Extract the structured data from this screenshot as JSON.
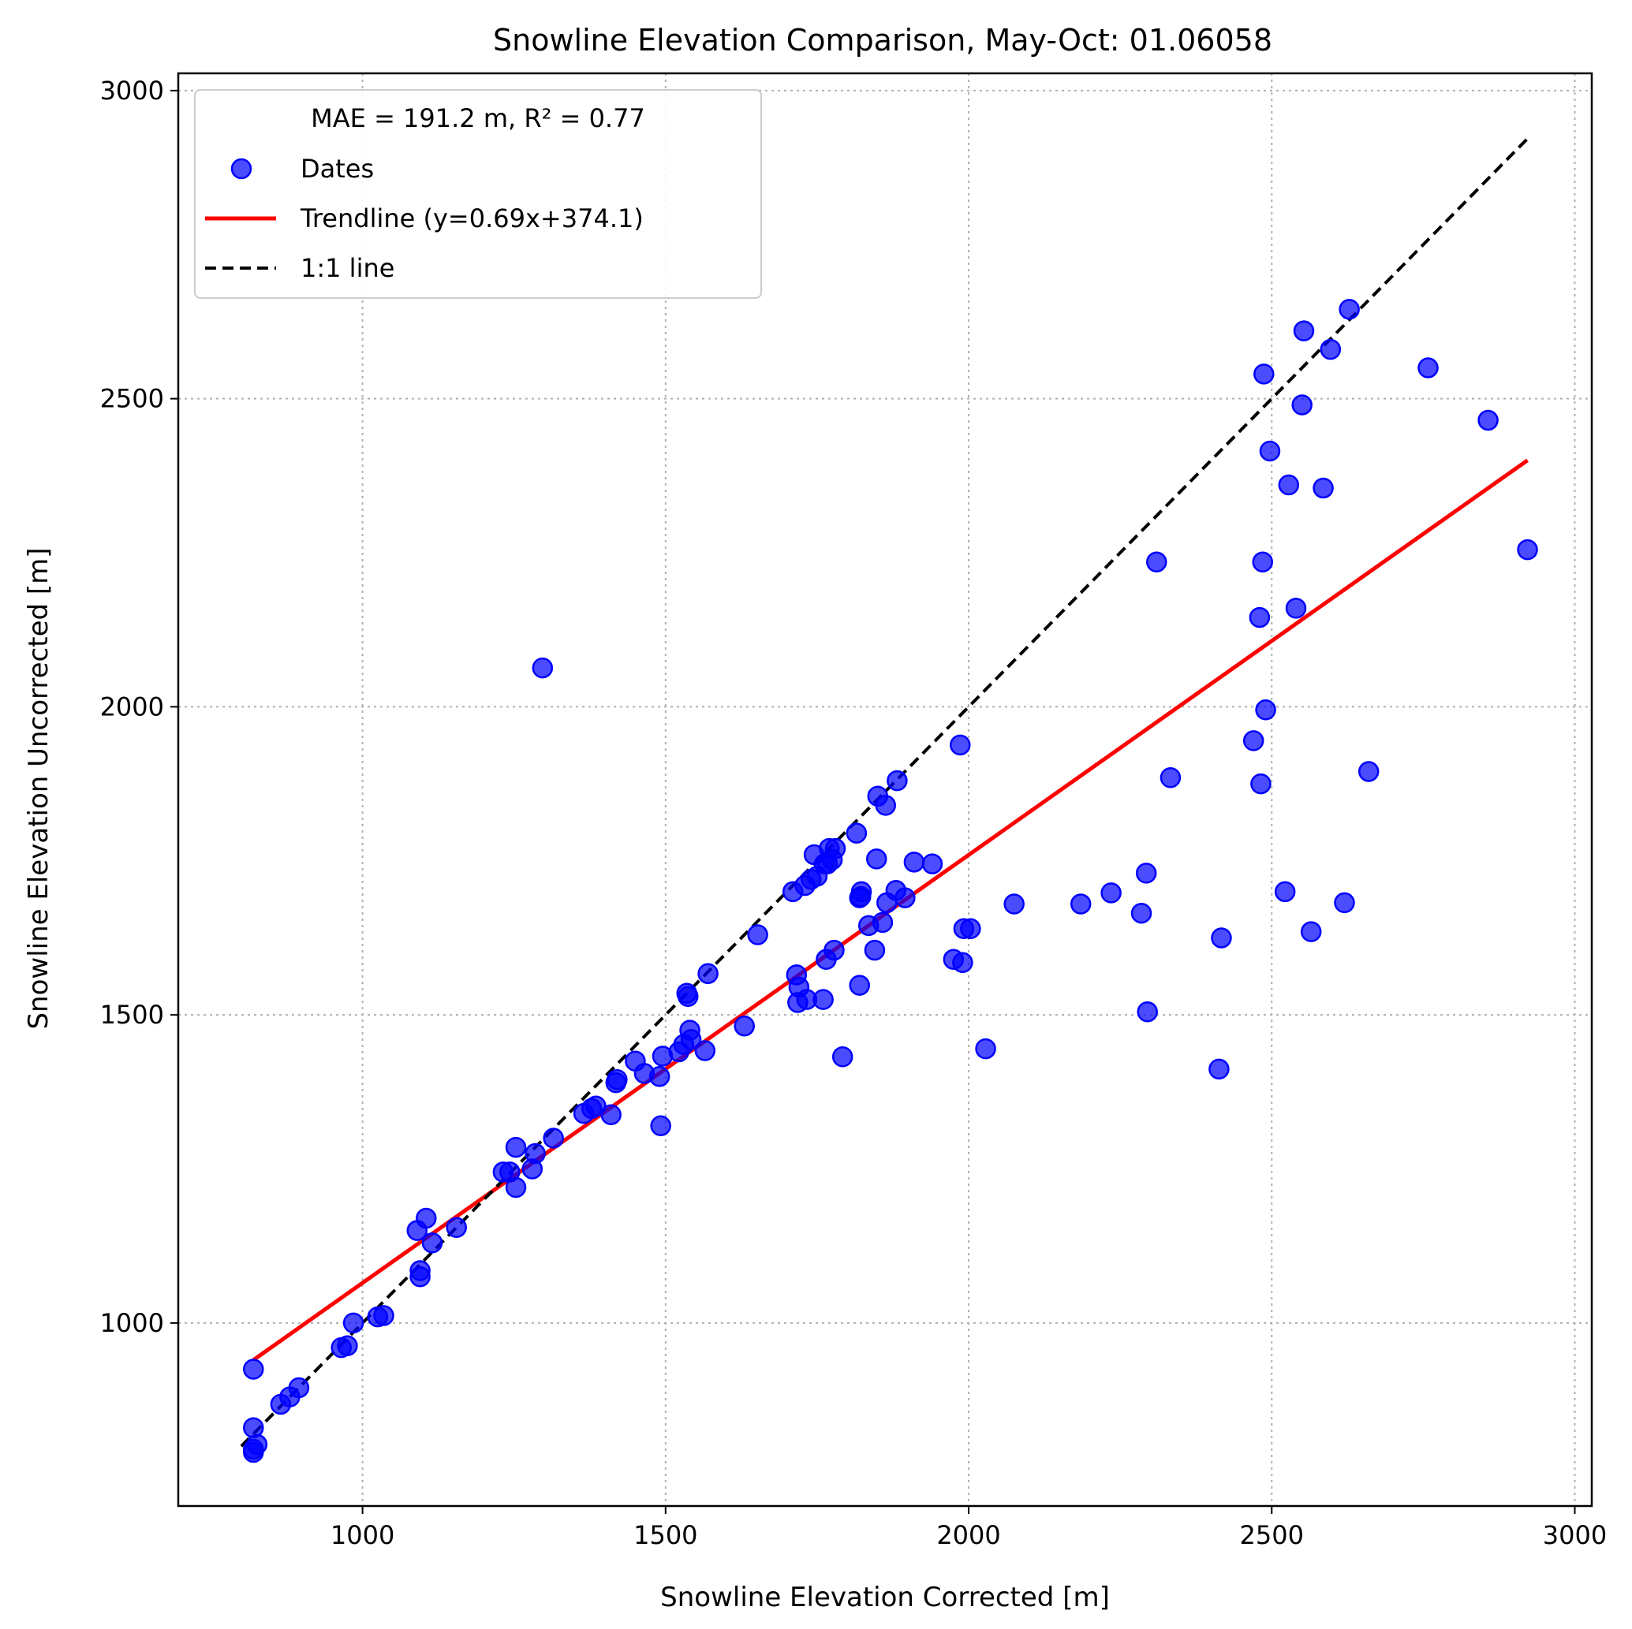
{
  "chart_data": {
    "type": "scatter",
    "title": "Snowline Elevation Comparison, May-Oct: 01.06058",
    "xlabel": "Snowline Elevation Corrected [m]",
    "ylabel": "Snowline Elevation Uncorrected [m]",
    "xlim": [
      696,
      3028
    ],
    "ylim": [
      703,
      3028
    ],
    "xticks": [
      1000,
      1500,
      2000,
      2500,
      3000
    ],
    "yticks": [
      1000,
      1500,
      2000,
      2500,
      3000
    ],
    "grid": true,
    "legend_position": "top-left",
    "legend_title": "MAE = 191.2 m,  R² = 0.77",
    "colors": {
      "points": "#0000ff",
      "trendline": "#ff0000",
      "one_to_one": "#000000"
    },
    "series": [
      {
        "name": "Dates",
        "kind": "scatter",
        "points": [
          [
            820,
            790
          ],
          [
            820,
            795
          ],
          [
            826,
            803
          ],
          [
            820,
            830
          ],
          [
            820,
            925
          ],
          [
            865,
            868
          ],
          [
            880,
            880
          ],
          [
            895,
            895
          ],
          [
            965,
            960
          ],
          [
            975,
            963
          ],
          [
            985,
            1000
          ],
          [
            1025,
            1010
          ],
          [
            1035,
            1012
          ],
          [
            1090,
            1150
          ],
          [
            1095,
            1075
          ],
          [
            1095,
            1085
          ],
          [
            1105,
            1170
          ],
          [
            1115,
            1130
          ],
          [
            1155,
            1155
          ],
          [
            1232,
            1245
          ],
          [
            1243,
            1245
          ],
          [
            1253,
            1220
          ],
          [
            1253,
            1285
          ],
          [
            1280,
            1250
          ],
          [
            1285,
            1275
          ],
          [
            1297,
            2063
          ],
          [
            1315,
            1300
          ],
          [
            1365,
            1340
          ],
          [
            1378,
            1348
          ],
          [
            1385,
            1352
          ],
          [
            1410,
            1338
          ],
          [
            1418,
            1390
          ],
          [
            1420,
            1395
          ],
          [
            1450,
            1425
          ],
          [
            1465,
            1405
          ],
          [
            1490,
            1400
          ],
          [
            1492,
            1320
          ],
          [
            1495,
            1433
          ],
          [
            1522,
            1440
          ],
          [
            1530,
            1452
          ],
          [
            1535,
            1535
          ],
          [
            1537,
            1530
          ],
          [
            1540,
            1475
          ],
          [
            1542,
            1460
          ],
          [
            1565,
            1442
          ],
          [
            1570,
            1567
          ],
          [
            1630,
            1482
          ],
          [
            1652,
            1630
          ],
          [
            1710,
            1700
          ],
          [
            1716,
            1565
          ],
          [
            1718,
            1520
          ],
          [
            1720,
            1545
          ],
          [
            1730,
            1710
          ],
          [
            1733,
            1525
          ],
          [
            1740,
            1720
          ],
          [
            1745,
            1760
          ],
          [
            1750,
            1725
          ],
          [
            1760,
            1525
          ],
          [
            1762,
            1745
          ],
          [
            1765,
            1590
          ],
          [
            1767,
            1745
          ],
          [
            1770,
            1770
          ],
          [
            1775,
            1752
          ],
          [
            1778,
            1605
          ],
          [
            1780,
            1770
          ],
          [
            1792,
            1432
          ],
          [
            1815,
            1795
          ],
          [
            1820,
            1690
          ],
          [
            1820,
            1548
          ],
          [
            1822,
            1692
          ],
          [
            1823,
            1700
          ],
          [
            1835,
            1645
          ],
          [
            1845,
            1605
          ],
          [
            1848,
            1753
          ],
          [
            1850,
            1855
          ],
          [
            1858,
            1650
          ],
          [
            1863,
            1840
          ],
          [
            1865,
            1682
          ],
          [
            1880,
            1702
          ],
          [
            1882,
            1880
          ],
          [
            1895,
            1690
          ],
          [
            1910,
            1748
          ],
          [
            1940,
            1745
          ],
          [
            1975,
            1590
          ],
          [
            1986,
            1938
          ],
          [
            1990,
            1585
          ],
          [
            1992,
            1640
          ],
          [
            2003,
            1640
          ],
          [
            2028,
            1445
          ],
          [
            2075,
            1680
          ],
          [
            2185,
            1680
          ],
          [
            2235,
            1698
          ],
          [
            2285,
            1665
          ],
          [
            2293,
            1730
          ],
          [
            2295,
            1505
          ],
          [
            2310,
            2235
          ],
          [
            2333,
            1885
          ],
          [
            2413,
            1412
          ],
          [
            2417,
            1625
          ],
          [
            2470,
            1945
          ],
          [
            2480,
            2145
          ],
          [
            2482,
            1875
          ],
          [
            2485,
            2235
          ],
          [
            2487,
            2540
          ],
          [
            2490,
            1995
          ],
          [
            2497,
            2415
          ],
          [
            2522,
            1700
          ],
          [
            2528,
            2360
          ],
          [
            2540,
            2160
          ],
          [
            2550,
            2490
          ],
          [
            2553,
            2610
          ],
          [
            2565,
            1635
          ],
          [
            2585,
            2355
          ],
          [
            2597,
            2580
          ],
          [
            2620,
            1682
          ],
          [
            2628,
            2645
          ],
          [
            2660,
            1895
          ],
          [
            2758,
            2550
          ],
          [
            2857,
            2465
          ],
          [
            2922,
            2255
          ]
        ]
      },
      {
        "name": "Trendline (y=0.69x+374.1)",
        "kind": "line",
        "style": "solid",
        "points": [
          [
            820,
            940
          ],
          [
            2922,
            2400
          ]
        ]
      },
      {
        "name": "1:1 line",
        "kind": "line",
        "style": "dashed",
        "points": [
          [
            800,
            800
          ],
          [
            2922,
            2922
          ]
        ]
      }
    ]
  }
}
